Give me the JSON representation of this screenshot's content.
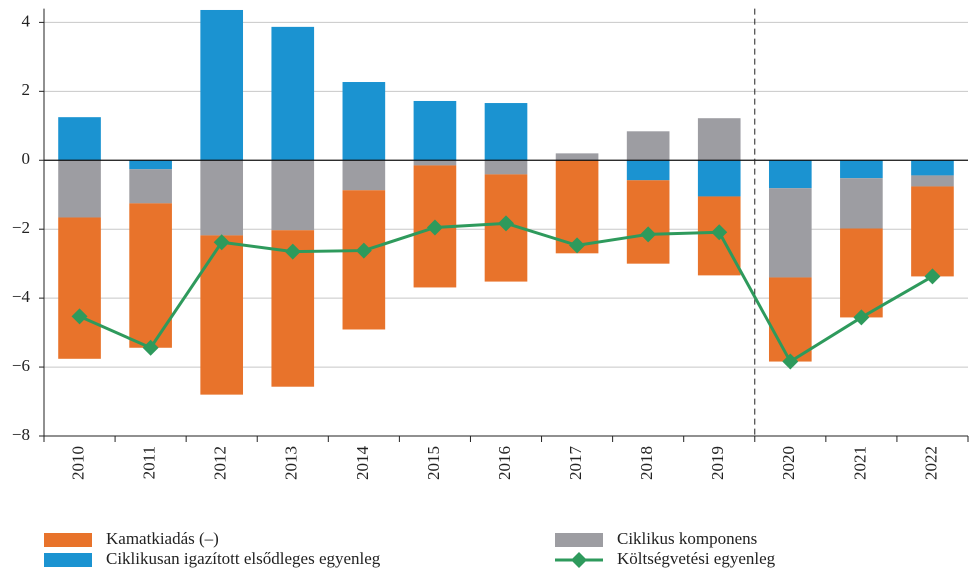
{
  "chart_data": {
    "type": "bar",
    "categories": [
      "2010",
      "2011",
      "2012",
      "2013",
      "2014",
      "2015",
      "2016",
      "2017",
      "2018",
      "2019",
      "2020",
      "2021",
      "2022"
    ],
    "series": [
      {
        "name": "Ciklikusan igazított elsődleges egyenleg",
        "color": "#1b93d1",
        "values": [
          1.25,
          -0.26,
          4.36,
          3.87,
          2.27,
          1.72,
          1.66,
          0,
          -0.58,
          -1.05,
          -0.81,
          -0.52,
          -0.44
        ]
      },
      {
        "name": "Ciklikus komponens",
        "color": "#9d9da2",
        "values": [
          -1.66,
          -0.99,
          -2.18,
          -2.03,
          -0.87,
          -0.15,
          -0.41,
          0.2,
          0.84,
          1.22,
          -2.59,
          -1.46,
          -0.32
        ]
      },
      {
        "name": "Kamatkiadás (–)",
        "color": "#e8732b",
        "values": [
          -4.1,
          -4.19,
          -4.62,
          -4.54,
          -4.04,
          -3.54,
          -3.11,
          -2.7,
          -2.42,
          -2.29,
          -2.44,
          -2.58,
          -2.61
        ]
      },
      {
        "name": "Költségvetési egyenleg",
        "type": "line",
        "color": "#2e9a5c",
        "values": [
          -4.53,
          -5.44,
          -2.38,
          -2.65,
          -2.62,
          -1.95,
          -1.83,
          -2.47,
          -2.15,
          -2.09,
          -5.84,
          -4.56,
          -3.37
        ]
      }
    ],
    "ylim": [
      -8,
      4.4
    ],
    "yticks": [
      {
        "value": -8,
        "label": "−8"
      },
      {
        "value": -6,
        "label": "−6"
      },
      {
        "value": -4,
        "label": "−4"
      },
      {
        "value": -2,
        "label": "−2"
      },
      0,
      2,
      4
    ],
    "grid": true,
    "divider_before": "2020"
  }
}
